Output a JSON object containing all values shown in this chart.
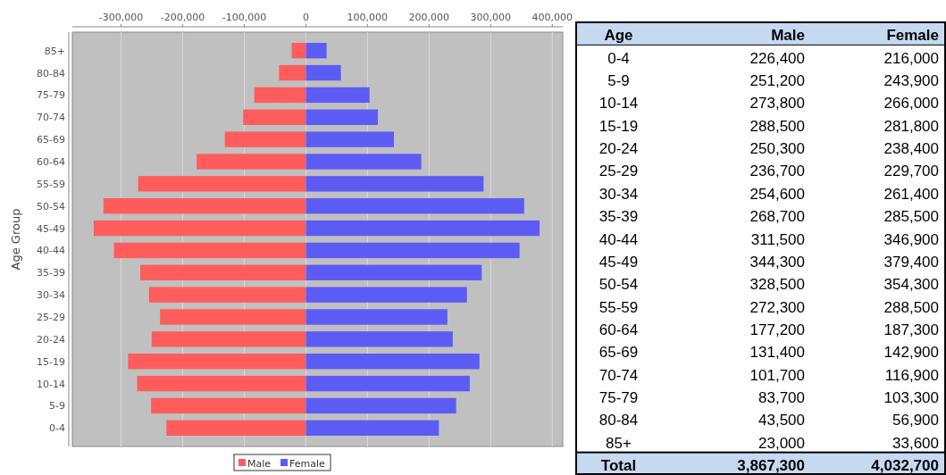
{
  "chart_data": [
    {
      "type": "bar",
      "orientation": "horizontal",
      "stacked": true,
      "ylabel": "Age Group",
      "categories": [
        "85+",
        "80-84",
        "75-79",
        "70-74",
        "65-69",
        "60-64",
        "55-59",
        "50-54",
        "45-49",
        "40-44",
        "35-39",
        "30-34",
        "25-29",
        "20-24",
        "15-19",
        "10-14",
        "5-9",
        "0-4"
      ],
      "series": [
        {
          "name": "Male",
          "color": "#ff5c5c",
          "values": [
            -23000,
            -43500,
            -83700,
            -101700,
            -131400,
            -177200,
            -272300,
            -328500,
            -344300,
            -311500,
            -268700,
            -254600,
            -236700,
            -250300,
            -288500,
            -273800,
            -251200,
            -226400
          ]
        },
        {
          "name": "Female",
          "color": "#5c5cf5",
          "values": [
            33600,
            56900,
            103300,
            116900,
            142900,
            187300,
            288500,
            354300,
            379400,
            346900,
            285500,
            261400,
            229700,
            238400,
            281800,
            266000,
            243900,
            216000
          ]
        }
      ],
      "xlim": [
        -379000,
        417000
      ],
      "xticks": [
        {
          "value": -300000,
          "label": "-300,000"
        },
        {
          "value": -200000,
          "label": "-200,000"
        },
        {
          "value": -100000,
          "label": "-100,000"
        },
        0,
        {
          "value": 100000,
          "label": "100,000"
        },
        {
          "value": 200000,
          "label": "200,000"
        },
        {
          "value": 300000,
          "label": "300,000"
        },
        {
          "value": 400000,
          "label": "400,000"
        }
      ],
      "grid": "x",
      "legend": "bottom"
    },
    {
      "type": "other",
      "annotations": [
        "Age",
        "Male",
        "Female",
        "0-4",
        "226,400",
        "216,000",
        "5-9",
        "251,200",
        "243,900",
        "10-14",
        "273,800",
        "266,000",
        "15-19",
        "288,500",
        "281,800",
        "20-24",
        "250,300",
        "238,400",
        "25-29",
        "236,700",
        "229,700",
        "30-34",
        "254,600",
        "261,400",
        "35-39",
        "268,700",
        "285,500",
        "40-44",
        "311,500",
        "346,900",
        "45-49",
        "344,300",
        "379,400",
        "50-54",
        "328,500",
        "354,300",
        "55-59",
        "272,300",
        "288,500",
        "60-64",
        "177,200",
        "187,300",
        "65-69",
        "131,400",
        "142,900",
        "70-74",
        "101,700",
        "116,900",
        "75-79",
        "83,700",
        "103,300",
        "80-84",
        "43,500",
        "56,900",
        "85+",
        "23,000",
        "33,600",
        "Total",
        "3,867,300",
        "4,032,700"
      ]
    }
  ]
}
